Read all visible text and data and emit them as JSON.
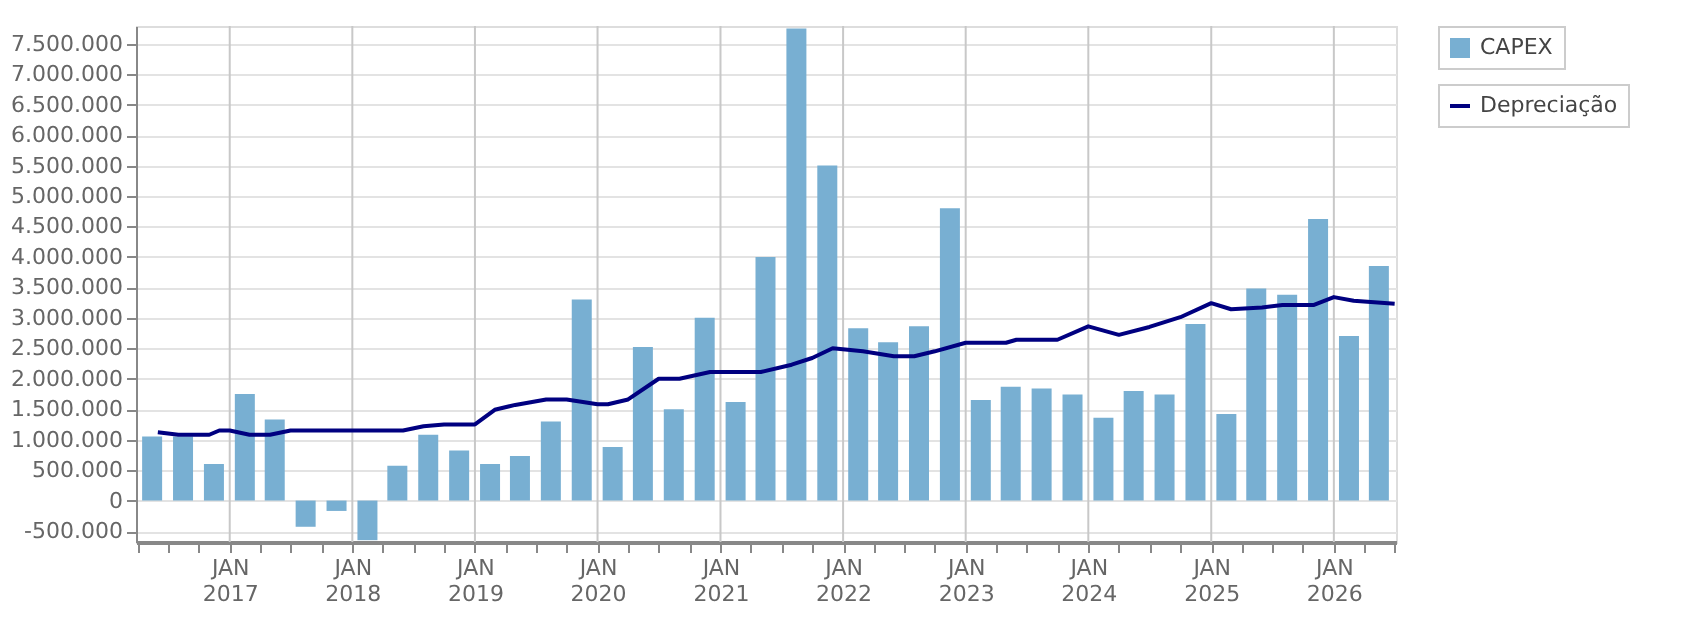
{
  "chart_data": {
    "type": "bar",
    "legend": "top right",
    "grid": true,
    "xlim": [
      "2016-03-28",
      "2026-07-05"
    ],
    "xticks": [
      {
        "value": "2016-04-01",
        "label": null
      },
      {
        "value": "2016-07-01",
        "label": null
      },
      {
        "value": "2016-10-01",
        "label": null
      },
      {
        "value": "2017-01-01",
        "label": "JAN 2017"
      },
      {
        "value": "2017-04-01",
        "label": null
      },
      {
        "value": "2017-07-01",
        "label": null
      },
      {
        "value": "2017-10-01",
        "label": null
      },
      {
        "value": "2018-01-01",
        "label": "JAN 2018"
      },
      {
        "value": "2018-04-01",
        "label": null
      },
      {
        "value": "2018-07-01",
        "label": null
      },
      {
        "value": "2018-10-01",
        "label": null
      },
      {
        "value": "2019-01-01",
        "label": "JAN 2019"
      },
      {
        "value": "2019-04-01",
        "label": null
      },
      {
        "value": "2019-07-01",
        "label": null
      },
      {
        "value": "2019-10-01",
        "label": null
      },
      {
        "value": "2020-01-01",
        "label": "JAN 2020"
      },
      {
        "value": "2020-04-01",
        "label": null
      },
      {
        "value": "2020-07-01",
        "label": null
      },
      {
        "value": "2020-10-01",
        "label": null
      },
      {
        "value": "2021-01-01",
        "label": "JAN 2021"
      },
      {
        "value": "2021-04-01",
        "label": null
      },
      {
        "value": "2021-07-01",
        "label": null
      },
      {
        "value": "2021-10-01",
        "label": null
      },
      {
        "value": "2022-01-01",
        "label": "JAN 2022"
      },
      {
        "value": "2022-04-01",
        "label": null
      },
      {
        "value": "2022-07-01",
        "label": null
      },
      {
        "value": "2022-10-01",
        "label": null
      },
      {
        "value": "2023-01-01",
        "label": "JAN 2023"
      },
      {
        "value": "2023-04-01",
        "label": null
      },
      {
        "value": "2023-07-01",
        "label": null
      },
      {
        "value": "2023-10-01",
        "label": null
      },
      {
        "value": "2024-01-01",
        "label": "JAN 2024"
      },
      {
        "value": "2024-04-01",
        "label": null
      },
      {
        "value": "2024-07-01",
        "label": null
      },
      {
        "value": "2024-10-01",
        "label": null
      },
      {
        "value": "2025-01-01",
        "label": "JAN 2025"
      },
      {
        "value": "2025-04-01",
        "label": null
      },
      {
        "value": "2025-07-01",
        "label": null
      },
      {
        "value": "2025-10-01",
        "label": null
      },
      {
        "value": "2026-01-01",
        "label": "JAN 2026"
      },
      {
        "value": "2026-04-01",
        "label": null
      },
      {
        "value": "2026-07-01",
        "label": null
      }
    ],
    "ylim": [
      -680000,
      7790000
    ],
    "yticks": [
      {
        "value": -500000,
        "label": "-500.000"
      },
      {
        "value": 0,
        "label": "0"
      },
      {
        "value": 500000,
        "label": "500.000"
      },
      {
        "value": 1000000,
        "label": "1.000.000"
      },
      {
        "value": 1500000,
        "label": "1.500.000"
      },
      {
        "value": 2000000,
        "label": "2.000.000"
      },
      {
        "value": 2500000,
        "label": "2.500.000"
      },
      {
        "value": 3000000,
        "label": "3.000.000"
      },
      {
        "value": 3500000,
        "label": "3.500.000"
      },
      {
        "value": 4000000,
        "label": "4.000.000"
      },
      {
        "value": 4500000,
        "label": "4.500.000"
      },
      {
        "value": 5000000,
        "label": "5.000.000"
      },
      {
        "value": 5500000,
        "label": "5.500.000"
      },
      {
        "value": 6000000,
        "label": "6.000.000"
      },
      {
        "value": 6500000,
        "label": "6.500.000"
      },
      {
        "value": 7000000,
        "label": "7.000.000"
      },
      {
        "value": 7500000,
        "label": "7.500.000"
      }
    ],
    "series": [
      {
        "name": "CAPEX",
        "type": "bar",
        "color": "#78afd2",
        "x": [
          "2016-05-15",
          "2016-08-15",
          "2016-11-15",
          "2017-02-15",
          "2017-05-15",
          "2017-08-15",
          "2017-11-15",
          "2018-02-15",
          "2018-05-15",
          "2018-08-15",
          "2018-11-15",
          "2019-02-15",
          "2019-05-15",
          "2019-08-15",
          "2019-11-15",
          "2020-02-15",
          "2020-05-15",
          "2020-08-15",
          "2020-11-15",
          "2021-02-15",
          "2021-05-15",
          "2021-08-15",
          "2021-11-15",
          "2022-02-15",
          "2022-05-15",
          "2022-08-15",
          "2022-11-15",
          "2023-02-15",
          "2023-05-15",
          "2023-08-15",
          "2023-11-15",
          "2024-02-15",
          "2024-05-15",
          "2024-08-15",
          "2024-11-15",
          "2025-02-15",
          "2025-05-15",
          "2025-08-15",
          "2025-11-15",
          "2026-02-15",
          "2026-05-15"
        ],
        "values": [
          1050000,
          1050000,
          600000,
          1750000,
          1330000,
          -430000,
          -170000,
          -650000,
          570000,
          1080000,
          820000,
          600000,
          730000,
          1300000,
          3300000,
          880000,
          2520000,
          1500000,
          3000000,
          1620000,
          4000000,
          7750000,
          5500000,
          2830000,
          2600000,
          2860000,
          4800000,
          1650000,
          1870000,
          1840000,
          1740000,
          1360000,
          1800000,
          1740000,
          2900000,
          1420000,
          3480000,
          3380000,
          4620000,
          2700000,
          3850000
        ]
      },
      {
        "name": "Depreciação",
        "type": "line",
        "color": "#000080",
        "x": [
          "2016-06-01",
          "2016-08-01",
          "2016-11-01",
          "2016-12-01",
          "2017-01-01",
          "2017-03-01",
          "2017-05-01",
          "2017-07-01",
          "2018-06-01",
          "2018-08-01",
          "2018-10-01",
          "2019-01-01",
          "2019-03-01",
          "2019-05-01",
          "2019-08-01",
          "2019-10-01",
          "2020-01-01",
          "2020-02-01",
          "2020-04-01",
          "2020-07-01",
          "2020-09-01",
          "2020-12-01",
          "2021-05-01",
          "2021-08-01",
          "2021-10-01",
          "2021-12-01",
          "2022-03-01",
          "2022-06-01",
          "2022-08-01",
          "2022-10-01",
          "2023-01-01",
          "2023-05-01",
          "2023-06-01",
          "2023-10-01",
          "2024-01-01",
          "2024-04-01",
          "2024-07-01",
          "2024-10-01",
          "2025-01-01",
          "2025-03-01",
          "2025-06-01",
          "2025-08-01",
          "2025-11-01",
          "2026-01-01",
          "2026-03-01",
          "2026-07-01"
        ],
        "values": [
          1120000,
          1080000,
          1080000,
          1150000,
          1150000,
          1080000,
          1080000,
          1150000,
          1150000,
          1220000,
          1250000,
          1250000,
          1490000,
          1570000,
          1660000,
          1660000,
          1580000,
          1580000,
          1660000,
          2000000,
          2000000,
          2110000,
          2110000,
          2230000,
          2340000,
          2500000,
          2450000,
          2370000,
          2370000,
          2450000,
          2590000,
          2590000,
          2640000,
          2640000,
          2860000,
          2720000,
          2850000,
          3010000,
          3240000,
          3140000,
          3170000,
          3210000,
          3210000,
          3340000,
          3280000,
          3230000
        ]
      }
    ]
  }
}
